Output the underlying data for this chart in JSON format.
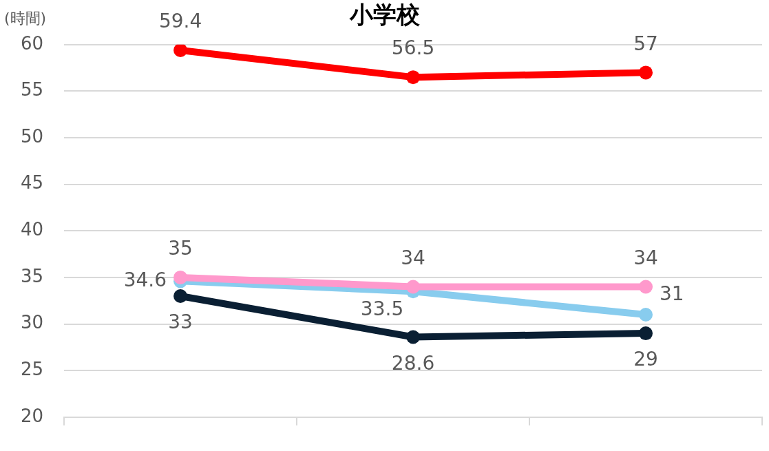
{
  "chart_data": {
    "type": "line",
    "title": "小学校",
    "ylabel": "(時間)",
    "categories": [
      null,
      null,
      null
    ],
    "series": [
      {
        "color": "#ff0000",
        "values": [
          59.4,
          56.5,
          57
        ]
      },
      {
        "color": "#ff99cc",
        "values": [
          35,
          34,
          34
        ]
      },
      {
        "color": "#88ccee",
        "values": [
          34.6,
          33.5,
          31
        ]
      },
      {
        "color": "#0a1f33",
        "values": [
          33,
          28.6,
          29
        ]
      }
    ],
    "ylim": [
      20,
      60
    ],
    "yticks": [
      20,
      25,
      30,
      35,
      40,
      45,
      50,
      55,
      60
    ],
    "grid": "y",
    "legend": false,
    "marker": "circle",
    "line_style": "solid",
    "data_labels": true
  }
}
